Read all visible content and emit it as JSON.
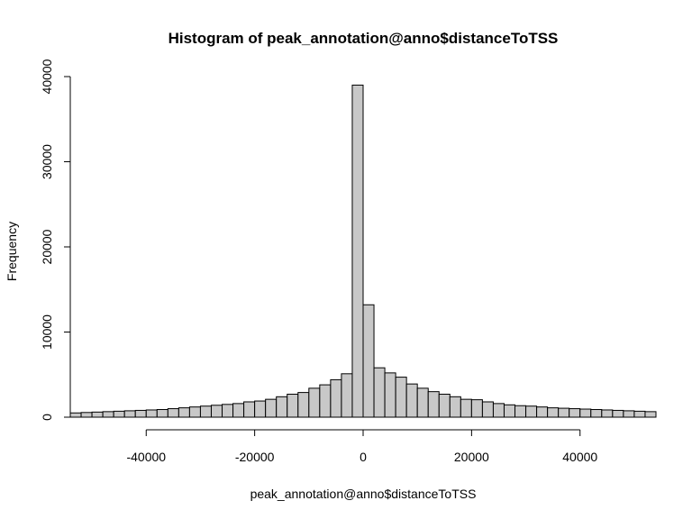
{
  "chart_data": {
    "type": "bar",
    "title": "Histogram of peak_annotation@anno$distanceToTSS",
    "xlabel": "peak_annotation@anno$distanceToTSS",
    "ylabel": "Frequency",
    "bin_width": 2000,
    "x_start": -54000,
    "xlim": [
      -54000,
      54000
    ],
    "ylim": [
      0,
      40000
    ],
    "x_ticks": [
      -40000,
      -20000,
      0,
      20000,
      40000
    ],
    "y_ticks": [
      0,
      10000,
      20000,
      30000,
      40000
    ],
    "x_tick_labels": [
      "-40000",
      "-20000",
      "0",
      "20000",
      "40000"
    ],
    "y_tick_labels": [
      "0",
      "10000",
      "20000",
      "30000",
      "40000"
    ],
    "values": [
      500,
      550,
      600,
      650,
      700,
      750,
      800,
      850,
      900,
      1000,
      1100,
      1200,
      1300,
      1400,
      1500,
      1600,
      1800,
      1900,
      2100,
      2400,
      2700,
      2900,
      3400,
      3800,
      4400,
      5100,
      39000,
      13200,
      5800,
      5200,
      4700,
      3900,
      3400,
      3000,
      2700,
      2400,
      2100,
      2050,
      1800,
      1600,
      1450,
      1350,
      1300,
      1200,
      1100,
      1050,
      1000,
      950,
      900,
      850,
      800,
      750,
      700,
      650
    ]
  }
}
